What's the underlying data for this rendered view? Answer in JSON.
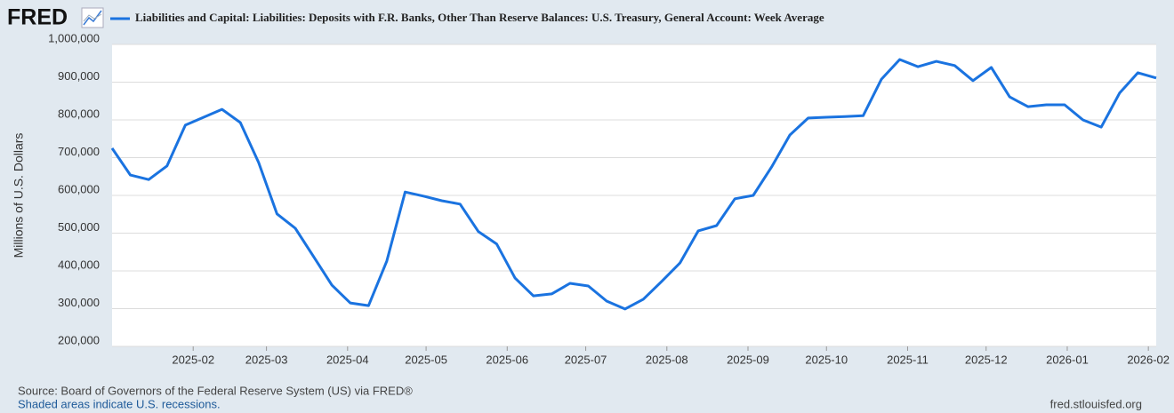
{
  "logo": "FRED",
  "chart_data": {
    "type": "line",
    "series": [
      {
        "name": "Liabilities and Capital: Liabilities: Deposits with F.R. Banks, Other Than Reserve Balances: U.S. Treasury, General Account: Week Average",
        "color": "#1a73e0",
        "values": [
          725000,
          654000,
          642000,
          678000,
          786000,
          807000,
          828000,
          793000,
          687000,
          551000,
          513000,
          438000,
          362000,
          315000,
          308000,
          426000,
          609000,
          598000,
          586000,
          577000,
          504000,
          471000,
          381000,
          334000,
          339000,
          367000,
          360000,
          320000,
          299000,
          325000,
          372000,
          421000,
          506000,
          520000,
          591000,
          600000,
          675000,
          760000,
          805000,
          807000,
          809000,
          811000,
          908000,
          960000,
          941000,
          955000,
          944000,
          904000,
          939000,
          861000,
          835000,
          840000,
          840000,
          800000,
          781000,
          871000,
          925000,
          911000
        ]
      }
    ],
    "x": [
      "2025-01-01",
      "2025-01-08",
      "2025-01-15",
      "2025-01-22",
      "2025-01-29",
      "2025-02-05",
      "2025-02-12",
      "2025-02-19",
      "2025-02-26",
      "2025-03-05",
      "2025-03-12",
      "2025-03-19",
      "2025-03-26",
      "2025-04-02",
      "2025-04-09",
      "2025-04-16",
      "2025-04-23",
      "2025-04-30",
      "2025-05-07",
      "2025-05-14",
      "2025-05-21",
      "2025-05-28",
      "2025-06-04",
      "2025-06-11",
      "2025-06-18",
      "2025-06-25",
      "2025-07-02",
      "2025-07-09",
      "2025-07-16",
      "2025-07-23",
      "2025-07-30",
      "2025-08-06",
      "2025-08-13",
      "2025-08-20",
      "2025-08-27",
      "2025-09-03",
      "2025-09-10",
      "2025-09-17",
      "2025-09-24",
      "2025-10-01",
      "2025-10-08",
      "2025-10-15",
      "2025-10-22",
      "2025-10-29",
      "2025-11-05",
      "2025-11-12",
      "2025-11-19",
      "2025-11-26",
      "2025-12-03",
      "2025-12-10",
      "2025-12-17",
      "2025-12-24",
      "2025-12-31",
      "2026-01-07",
      "2026-01-14",
      "2026-01-21",
      "2026-01-28",
      "2026-02-04"
    ],
    "xlim": [
      "2025-01-01",
      "2026-02-04"
    ],
    "xticks": [
      {
        "value": "2025-02-01",
        "label": "2025-02"
      },
      {
        "value": "2025-03-01",
        "label": "2025-03"
      },
      {
        "value": "2025-04-01",
        "label": "2025-04"
      },
      {
        "value": "2025-05-01",
        "label": "2025-05"
      },
      {
        "value": "2025-06-01",
        "label": "2025-06"
      },
      {
        "value": "2025-07-01",
        "label": "2025-07"
      },
      {
        "value": "2025-08-01",
        "label": "2025-08"
      },
      {
        "value": "2025-09-01",
        "label": "2025-09"
      },
      {
        "value": "2025-10-01",
        "label": "2025-10"
      },
      {
        "value": "2025-11-01",
        "label": "2025-11"
      },
      {
        "value": "2025-12-01",
        "label": "2025-12"
      },
      {
        "value": "2026-01-01",
        "label": "2026-01"
      },
      {
        "value": "2026-02-01",
        "label": "2026-02"
      }
    ],
    "ylim": [
      200000,
      1000000
    ],
    "yticks": [
      {
        "value": 200000,
        "label": "200,000"
      },
      {
        "value": 300000,
        "label": "300,000"
      },
      {
        "value": 400000,
        "label": "400,000"
      },
      {
        "value": 500000,
        "label": "500,000"
      },
      {
        "value": 600000,
        "label": "600,000"
      },
      {
        "value": 700000,
        "label": "700,000"
      },
      {
        "value": 800000,
        "label": "800,000"
      },
      {
        "value": 900000,
        "label": "900,000"
      },
      {
        "value": 1000000,
        "label": "1,000,000"
      }
    ],
    "ylabel": "Millions of U.S. Dollars",
    "grid": true
  },
  "footer": {
    "source": "Source: Board of Governors of the Federal Reserve System (US) via FRED®",
    "note": "Shaded areas indicate U.S. recessions.",
    "site": "fred.stlouisfed.org"
  }
}
